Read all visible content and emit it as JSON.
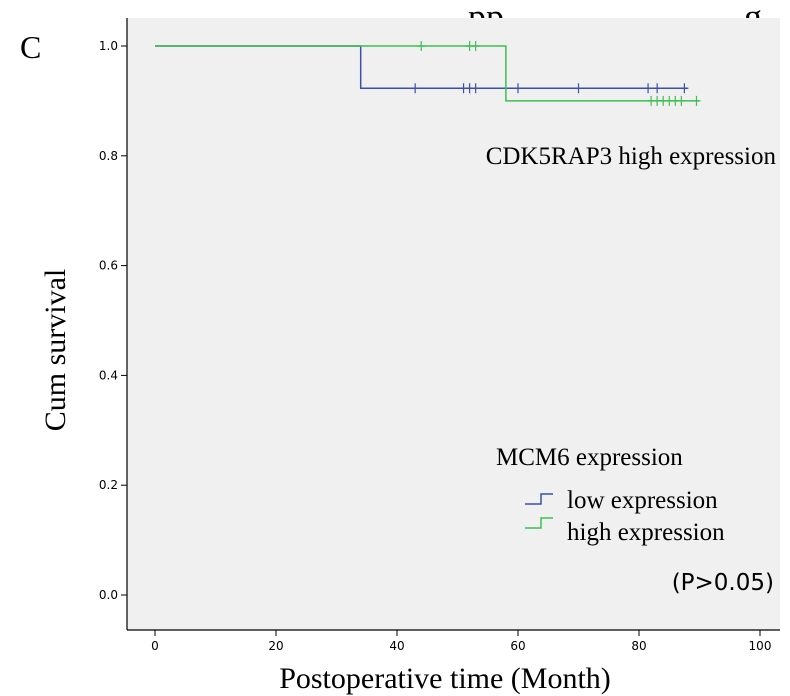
{
  "panel_label": "C",
  "top_clipped_text": "pp",
  "top_right_clipped_text": "g",
  "group_title": "CDK5RAP3 high expression",
  "legend": {
    "title": "MCM6 expression",
    "items": [
      {
        "label": "low expression",
        "color": "#3a4fb0"
      },
      {
        "label": "high expression",
        "color": "#3cbf50"
      }
    ]
  },
  "p_value_text": "(P>0.05)",
  "colors": {
    "plot_background": "#f0f0f0",
    "low_series": "#3a4fb0",
    "high_series": "#3cbf50",
    "axis": "#000000"
  },
  "chart_data": {
    "type": "line",
    "subtype": "kaplan-meier step",
    "xlabel": "Postoperative time (Month)",
    "ylabel": "Cum survival",
    "xlim": [
      0,
      100
    ],
    "ylim": [
      0.0,
      1.0
    ],
    "x_ticks": [
      0,
      20,
      40,
      60,
      80,
      100
    ],
    "x_tick_labels": [
      "0",
      "20",
      "40",
      "60",
      "80",
      "100"
    ],
    "y_ticks": [
      0.0,
      0.2,
      0.4,
      0.6,
      0.8,
      1.0
    ],
    "y_tick_labels": [
      "0.0",
      "0.2",
      "0.4",
      "0.6",
      "0.8",
      "1.0"
    ],
    "grid": false,
    "legend_position": "bottom-right",
    "series": [
      {
        "name": "low expression",
        "color": "#3a4fb0",
        "steps": [
          [
            0,
            1.0
          ],
          [
            34,
            1.0
          ],
          [
            34,
            0.923
          ],
          [
            88,
            0.923
          ]
        ],
        "censored": [
          [
            43,
            0.923
          ],
          [
            51,
            0.923
          ],
          [
            52,
            0.923
          ],
          [
            53,
            0.923
          ],
          [
            60,
            0.923
          ],
          [
            70,
            0.923
          ],
          [
            81.5,
            0.923
          ],
          [
            83,
            0.923
          ],
          [
            87.5,
            0.923
          ]
        ]
      },
      {
        "name": "high expression",
        "color": "#3cbf50",
        "steps": [
          [
            0,
            1.0
          ],
          [
            58,
            1.0
          ],
          [
            58,
            0.9
          ],
          [
            90,
            0.9
          ]
        ],
        "censored": [
          [
            44,
            1.0
          ],
          [
            52,
            1.0
          ],
          [
            53,
            1.0
          ],
          [
            82,
            0.9
          ],
          [
            83,
            0.9
          ],
          [
            84,
            0.9
          ],
          [
            85,
            0.9
          ],
          [
            86,
            0.9
          ],
          [
            87,
            0.9
          ],
          [
            89.5,
            0.9
          ]
        ]
      }
    ]
  }
}
